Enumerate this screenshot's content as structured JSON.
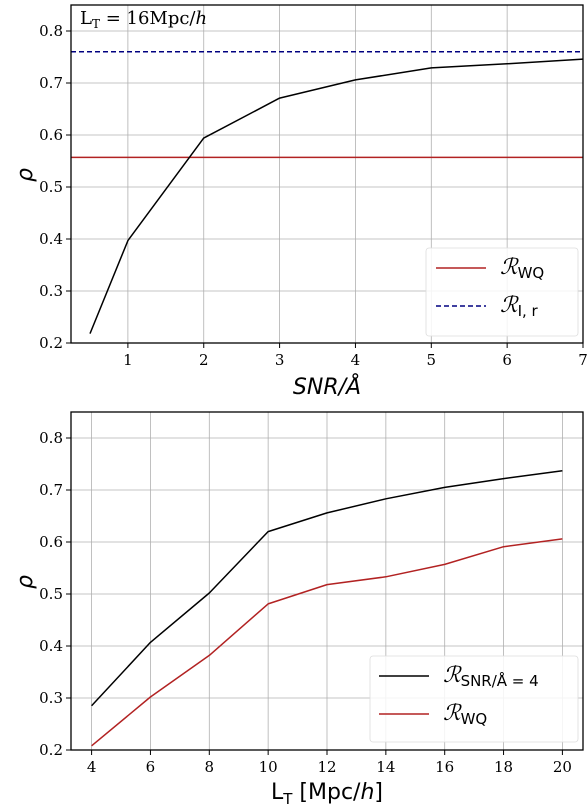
{
  "chart_data": [
    {
      "type": "line",
      "annotation": "L_T = 16Mpc/h",
      "xlabel": "SNR/Å",
      "ylabel": "ρ",
      "xlim": [
        0.25,
        7
      ],
      "ylim": [
        0.2,
        0.85
      ],
      "xticks": [
        1,
        2,
        3,
        4,
        5,
        6,
        7
      ],
      "yticks": [
        0.2,
        0.3,
        0.4,
        0.5,
        0.6,
        0.7,
        0.8
      ],
      "grid": true,
      "legend_position": "lower-right",
      "series": [
        {
          "x": [
            0.5,
            1,
            2,
            3,
            4,
            5,
            6,
            7
          ],
          "y": [
            0.218,
            0.397,
            0.594,
            0.671,
            0.706,
            0.729,
            0.737,
            0.746
          ],
          "color": "#000000",
          "style": "solid"
        }
      ],
      "hlines": [
        {
          "name": "R_WQ",
          "y": 0.557,
          "color": "#b22222",
          "style": "solid"
        },
        {
          "name": "R_I,r",
          "y": 0.76,
          "color": "#000080",
          "style": "dashed"
        }
      ]
    },
    {
      "type": "line",
      "xlabel": "L_T [Mpc/h]",
      "ylabel": "ρ",
      "xlim": [
        3.3,
        20.7
      ],
      "ylim": [
        0.2,
        0.85
      ],
      "xticks": [
        4,
        6,
        8,
        10,
        12,
        14,
        16,
        18,
        20
      ],
      "yticks": [
        0.2,
        0.3,
        0.4,
        0.5,
        0.6,
        0.7,
        0.8
      ],
      "grid": true,
      "legend_position": "lower-right",
      "series": [
        {
          "name": "R_SNR/Å=4",
          "x": [
            4,
            6,
            8,
            10,
            12,
            14,
            16,
            18,
            20
          ],
          "y": [
            0.285,
            0.407,
            0.502,
            0.62,
            0.656,
            0.683,
            0.705,
            0.722,
            0.737
          ],
          "color": "#000000",
          "style": "solid"
        },
        {
          "name": "R_WQ",
          "x": [
            4,
            6,
            8,
            10,
            12,
            14,
            16,
            18,
            20
          ],
          "y": [
            0.208,
            0.302,
            0.382,
            0.481,
            0.518,
            0.533,
            0.557,
            0.591,
            0.606
          ],
          "color": "#b22222",
          "style": "solid"
        }
      ]
    }
  ]
}
